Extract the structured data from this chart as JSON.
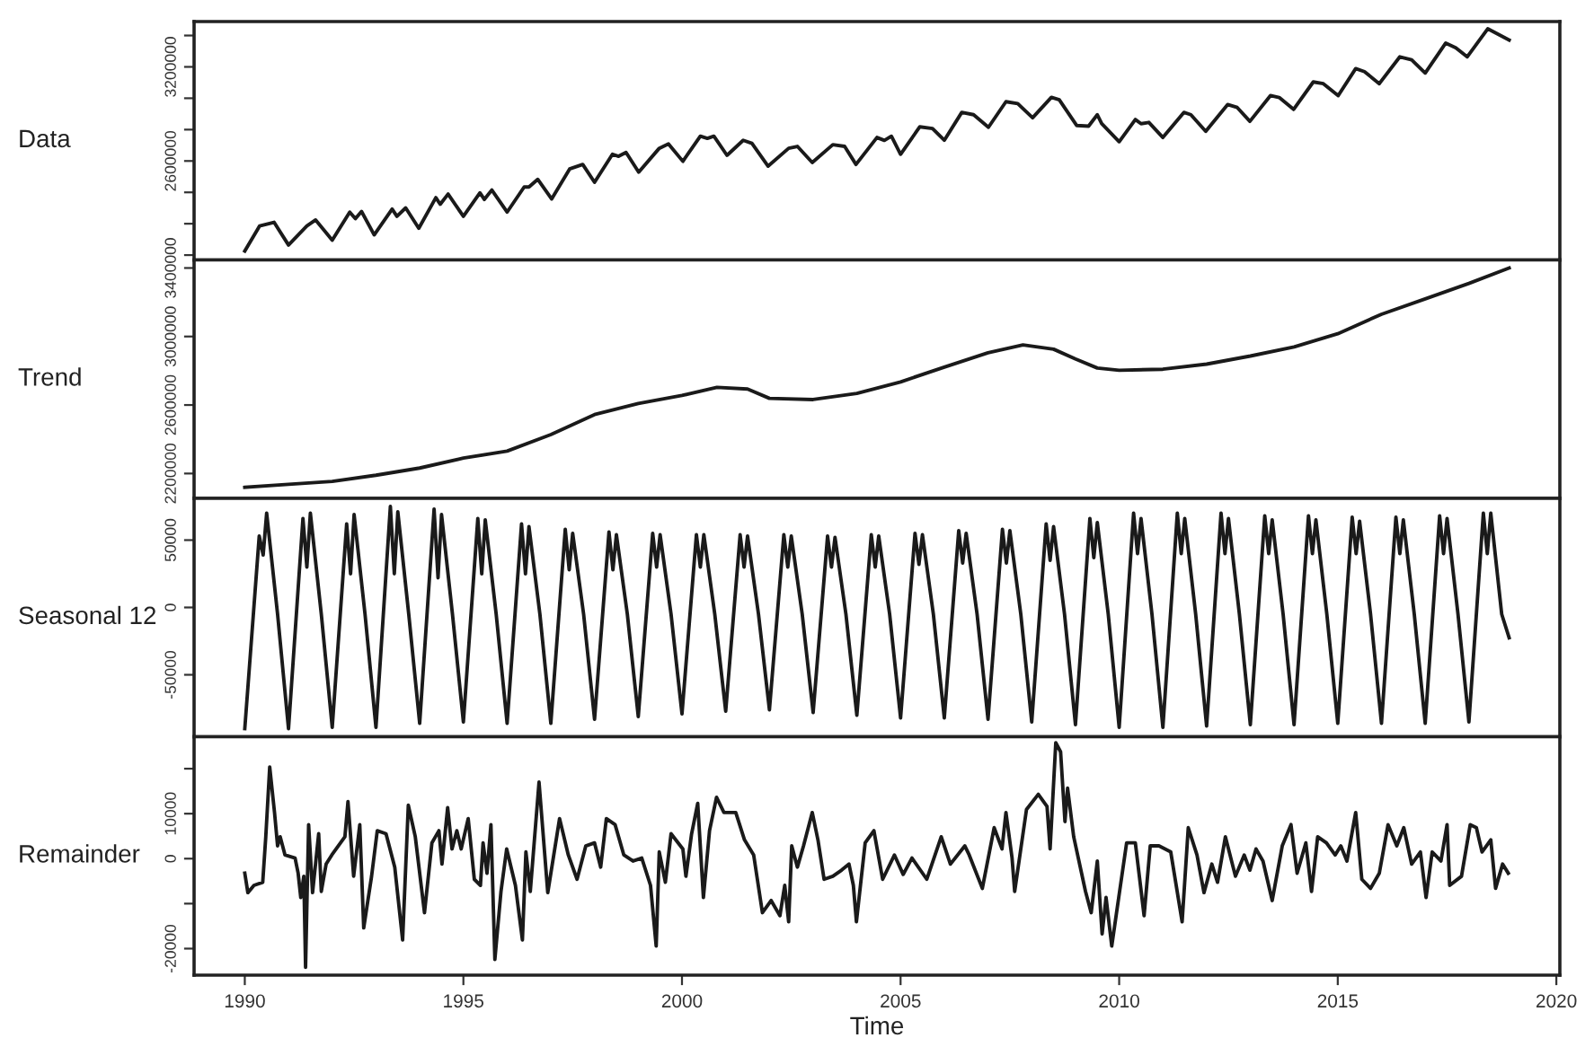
{
  "chart_data": [
    {
      "type": "line",
      "ylabel": "Data",
      "tick_labels": "y",
      "grid": false,
      "legend": false,
      "xlim": [
        1988.84,
        2020.08
      ],
      "ylim": [
        1969000,
        3489000
      ],
      "yticks": [
        {
          "value": 3400000,
          "label": null
        },
        3200000,
        {
          "value": 3000000,
          "label": null
        },
        {
          "value": 2800000,
          "label": null
        },
        2600000,
        {
          "value": 2400000,
          "label": null
        },
        {
          "value": 2200000,
          "label": null
        },
        {
          "value": 2000000,
          "label": null
        }
      ],
      "series": [
        {
          "color": "#1a1a1a",
          "x": [
            1990.0,
            1990.34,
            1990.67,
            1991.0,
            1991.42,
            1991.62,
            1992.0,
            1992.4,
            1992.53,
            1992.67,
            1992.96,
            1993.37,
            1993.48,
            1993.68,
            1993.98,
            1994.37,
            1994.47,
            1994.65,
            1995.0,
            1995.38,
            1995.48,
            1995.65,
            1996.0,
            1996.39,
            1996.5,
            1996.7,
            1997.02,
            1997.43,
            1997.73,
            1998.0,
            1998.41,
            1998.55,
            1998.72,
            1999.01,
            1999.48,
            1999.69,
            2000.02,
            2000.42,
            2000.58,
            2000.73,
            2001.03,
            2001.4,
            2001.6,
            2001.97,
            2002.44,
            2002.64,
            2002.98,
            2003.45,
            2003.72,
            2003.98,
            2004.46,
            2004.63,
            2004.79,
            2005.0,
            2005.44,
            2005.73,
            2006.0,
            2006.4,
            2006.67,
            2007.01,
            2007.41,
            2007.68,
            2008.02,
            2008.45,
            2008.63,
            2009.03,
            2009.3,
            2009.5,
            2009.6,
            2010.0,
            2010.37,
            2010.5,
            2010.68,
            2011.0,
            2011.48,
            2011.64,
            2011.98,
            2012.48,
            2012.7,
            2012.99,
            2013.46,
            2013.66,
            2013.99,
            2014.44,
            2014.67,
            2015.01,
            2015.41,
            2015.61,
            2015.95,
            2016.42,
            2016.69,
            2017.0,
            2017.47,
            2017.7,
            2017.96,
            2018.43,
            2018.92
          ],
          "values": [
            2026000,
            2186000,
            2209000,
            2064000,
            2186000,
            2224000,
            2095000,
            2274000,
            2232000,
            2278000,
            2129000,
            2293000,
            2247000,
            2301000,
            2171000,
            2366000,
            2324000,
            2389000,
            2247000,
            2397000,
            2355000,
            2415000,
            2274000,
            2434000,
            2434000,
            2483000,
            2358000,
            2549000,
            2578000,
            2464000,
            2643000,
            2630000,
            2655000,
            2529000,
            2681000,
            2709000,
            2598000,
            2758000,
            2744000,
            2758000,
            2636000,
            2732000,
            2713000,
            2567000,
            2681000,
            2693000,
            2590000,
            2704000,
            2693000,
            2578000,
            2750000,
            2731000,
            2758000,
            2643000,
            2818000,
            2807000,
            2732000,
            2910000,
            2895000,
            2815000,
            2978000,
            2966000,
            2876000,
            3006000,
            2990000,
            2826000,
            2822000,
            2895000,
            2838000,
            2723000,
            2864000,
            2838000,
            2846000,
            2750000,
            2910000,
            2895000,
            2789000,
            2960000,
            2941000,
            2853000,
            3017000,
            3005000,
            2929000,
            3104000,
            3093000,
            3017000,
            3189000,
            3170000,
            3093000,
            3264000,
            3245000,
            3161000,
            3352000,
            3322000,
            3264000,
            3443000,
            3371000
          ]
        }
      ]
    },
    {
      "type": "line",
      "ylabel": "Trend",
      "tick_labels": "y",
      "grid": false,
      "legend": false,
      "xlim": [
        1988.84,
        2020.08
      ],
      "ylim": [
        2055000,
        3447000
      ],
      "yticks": [
        2200000,
        2600000,
        3000000,
        3400000
      ],
      "series": [
        {
          "color": "#1a1a1a",
          "x": [
            1990,
            1991,
            1992,
            1993,
            1994,
            1995,
            1996,
            1997,
            1998,
            1999,
            2000,
            2000.8,
            2001.5,
            2002,
            2003,
            2004,
            2005,
            2006,
            2007,
            2007.8,
            2008.5,
            2009,
            2009.5,
            2010,
            2011,
            2012,
            2013,
            2014,
            2015,
            2016,
            2017,
            2018,
            2018.92
          ],
          "values": [
            2119000,
            2137000,
            2154000,
            2190000,
            2232000,
            2290000,
            2331000,
            2427000,
            2544000,
            2609000,
            2656000,
            2703000,
            2693000,
            2639000,
            2632000,
            2668000,
            2735000,
            2821000,
            2905000,
            2951000,
            2926000,
            2869000,
            2816000,
            2803000,
            2809000,
            2839000,
            2886000,
            2939000,
            3016000,
            3130000,
            3220000,
            3310000,
            3400000
          ]
        }
      ]
    },
    {
      "type": "line",
      "ylabel": "Seasonal 12",
      "tick_labels": "y",
      "grid": false,
      "legend": false,
      "xlim": [
        1988.84,
        2020.08
      ],
      "ylim": [
        -96000,
        81000
      ],
      "yticks": [
        -50000,
        0,
        50000
      ],
      "series": [
        {
          "color": "#1a1a1a",
          "x": [
            1990,
            1990.33,
            1990.42,
            1990.5,
            1990.75,
            1991,
            1991.33,
            1991.42,
            1991.5,
            1991.75,
            1992,
            1992.33,
            1992.42,
            1992.5,
            1992.75,
            1993,
            1993.33,
            1993.42,
            1993.5,
            1993.75,
            1994,
            1994.33,
            1994.42,
            1994.5,
            1994.75,
            1995,
            1995.33,
            1995.42,
            1995.5,
            1995.75,
            1996,
            1996.33,
            1996.42,
            1996.5,
            1996.75,
            1997,
            1997.33,
            1997.42,
            1997.5,
            1997.75,
            1998,
            1998.33,
            1998.42,
            1998.5,
            1998.75,
            1999,
            1999.33,
            1999.42,
            1999.5,
            1999.75,
            2000,
            2000.33,
            2000.42,
            2000.5,
            2000.75,
            2001,
            2001.33,
            2001.42,
            2001.5,
            2001.75,
            2002,
            2002.33,
            2002.42,
            2002.5,
            2002.75,
            2003,
            2003.33,
            2003.42,
            2003.5,
            2003.75,
            2004,
            2004.33,
            2004.42,
            2004.5,
            2004.75,
            2005,
            2005.33,
            2005.42,
            2005.5,
            2005.75,
            2006,
            2006.33,
            2006.42,
            2006.5,
            2006.75,
            2007,
            2007.33,
            2007.42,
            2007.5,
            2007.75,
            2008,
            2008.33,
            2008.42,
            2008.5,
            2008.75,
            2009,
            2009.33,
            2009.42,
            2009.5,
            2009.75,
            2010,
            2010.33,
            2010.42,
            2010.5,
            2010.75,
            2011,
            2011.33,
            2011.42,
            2011.5,
            2011.75,
            2012,
            2012.33,
            2012.42,
            2012.5,
            2012.75,
            2013,
            2013.33,
            2013.42,
            2013.5,
            2013.75,
            2014,
            2014.33,
            2014.42,
            2014.5,
            2014.75,
            2015,
            2015.33,
            2015.42,
            2015.5,
            2015.75,
            2016,
            2016.33,
            2016.42,
            2016.5,
            2016.75,
            2017,
            2017.33,
            2017.42,
            2017.5,
            2017.75,
            2018,
            2018.33,
            2018.42,
            2018.5,
            2018.75,
            2018.92
          ],
          "values": [
            -90000,
            53000,
            39000,
            70000,
            -5000,
            -90000,
            66000,
            30000,
            70000,
            -5000,
            -89000,
            62000,
            25000,
            69000,
            -5000,
            -89000,
            75000,
            25000,
            71000,
            -5000,
            -86000,
            73000,
            22000,
            69000,
            -5000,
            -85000,
            66000,
            25000,
            65000,
            -5000,
            -86000,
            62000,
            25000,
            60000,
            -5000,
            -86000,
            58000,
            28000,
            55000,
            -5000,
            -83000,
            56000,
            28000,
            54000,
            -5000,
            -81000,
            55000,
            30000,
            54000,
            -5000,
            -79000,
            54000,
            30000,
            54000,
            -5000,
            -77000,
            54000,
            30000,
            53000,
            -5000,
            -76000,
            54000,
            30000,
            53000,
            -5000,
            -78000,
            53000,
            30000,
            52000,
            -5000,
            -80000,
            54000,
            30000,
            53000,
            -5000,
            -82000,
            55000,
            32000,
            54000,
            -5000,
            -82000,
            57000,
            33000,
            55000,
            -5000,
            -83000,
            58000,
            33000,
            57000,
            -5000,
            -85000,
            62000,
            35000,
            60000,
            -5000,
            -87000,
            66000,
            37000,
            63000,
            -5000,
            -89000,
            70000,
            40000,
            66000,
            -5000,
            -89000,
            70000,
            40000,
            66000,
            -5000,
            -88000,
            70000,
            40000,
            66000,
            -5000,
            -87000,
            68000,
            40000,
            65000,
            -5000,
            -87000,
            68000,
            40000,
            65000,
            -5000,
            -86000,
            67000,
            40000,
            64000,
            -5000,
            -86000,
            67000,
            40000,
            65000,
            -5000,
            -86000,
            68000,
            40000,
            66000,
            -5000,
            -85000,
            70000,
            40000,
            70000,
            -5000,
            -22500
          ]
        }
      ]
    },
    {
      "type": "line",
      "ylabel": "Remainder",
      "xlabel": "Time",
      "grid": false,
      "legend": false,
      "xlim": [
        1988.84,
        2020.08
      ],
      "ylim": [
        -25900,
        27100
      ],
      "xticks": [
        1990,
        1995,
        2000,
        2005,
        2010,
        2015,
        2020
      ],
      "yticks": [
        {
          "value": 20000,
          "label": null
        },
        10000,
        0,
        {
          "value": -10000,
          "label": null
        },
        -20000
      ],
      "series": [
        {
          "color": "#1a1a1a",
          "x": [
            1990.0,
            1990.07,
            1990.21,
            1990.41,
            1990.48,
            1990.57,
            1990.68,
            1990.75,
            1990.81,
            1990.92,
            1991.15,
            1991.22,
            1991.28,
            1991.35,
            1991.39,
            1991.46,
            1991.55,
            1991.69,
            1991.75,
            1991.86,
            1991.99,
            1992.29,
            1992.36,
            1992.49,
            1992.63,
            1992.72,
            1992.9,
            1993.03,
            1993.23,
            1993.43,
            1993.61,
            1993.74,
            1993.9,
            1994.11,
            1994.28,
            1994.44,
            1994.51,
            1994.64,
            1994.74,
            1994.85,
            1994.95,
            1995.11,
            1995.25,
            1995.39,
            1995.45,
            1995.54,
            1995.63,
            1995.72,
            1995.86,
            1995.99,
            1996.19,
            1996.35,
            1996.43,
            1996.53,
            1996.73,
            1996.93,
            1997.2,
            1997.4,
            1997.6,
            1997.8,
            1998.0,
            1998.14,
            1998.27,
            1998.47,
            1998.67,
            1998.88,
            1999.08,
            1999.28,
            1999.41,
            1999.48,
            1999.62,
            1999.75,
            2000.02,
            2000.09,
            2000.22,
            2000.36,
            2000.49,
            2000.63,
            2000.79,
            2000.96,
            2001.23,
            2001.43,
            2001.64,
            2001.84,
            2002.04,
            2002.24,
            2002.35,
            2002.44,
            2002.51,
            2002.64,
            2002.78,
            2002.98,
            2003.11,
            2003.25,
            2003.45,
            2003.65,
            2003.82,
            2003.92,
            2003.99,
            2004.19,
            2004.39,
            2004.59,
            2004.86,
            2005.06,
            2005.26,
            2005.6,
            2005.93,
            2006.14,
            2006.47,
            2006.57,
            2006.87,
            2007.14,
            2007.32,
            2007.41,
            2007.55,
            2007.61,
            2007.88,
            2008.15,
            2008.35,
            2008.42,
            2008.55,
            2008.66,
            2008.76,
            2008.82,
            2008.96,
            2009.23,
            2009.36,
            2009.5,
            2009.61,
            2009.7,
            2009.83,
            2009.97,
            2010.17,
            2010.37,
            2010.57,
            2010.71,
            2010.91,
            2011.18,
            2011.44,
            2011.58,
            2011.78,
            2011.94,
            2012.12,
            2012.25,
            2012.43,
            2012.66,
            2012.86,
            2012.99,
            2013.13,
            2013.29,
            2013.5,
            2013.73,
            2013.93,
            2014.07,
            2014.27,
            2014.4,
            2014.54,
            2014.74,
            2014.94,
            2015.07,
            2015.21,
            2015.41,
            2015.55,
            2015.75,
            2015.95,
            2016.15,
            2016.35,
            2016.51,
            2016.69,
            2016.89,
            2017.02,
            2017.16,
            2017.36,
            2017.5,
            2017.56,
            2017.83,
            2018.03,
            2018.17,
            2018.3,
            2018.5,
            2018.61,
            2018.77,
            2018.9
          ],
          "values": [
            -3240,
            -7560,
            -5940,
            -5265,
            4860,
            20385,
            10260,
            2835,
            4860,
            810,
            135,
            -3240,
            -8640,
            -3915,
            -24165,
            7560,
            -7560,
            5535,
            -7290,
            -1215,
            810,
            4860,
            12690,
            -3915,
            7560,
            -15390,
            -3915,
            6210,
            5535,
            -1890,
            -18090,
            11880,
            4860,
            -12015,
            3510,
            6210,
            -1215,
            11340,
            2160,
            6210,
            2160,
            8910,
            -4590,
            -5940,
            3510,
            -3240,
            7560,
            -22410,
            -7290,
            2160,
            -5940,
            -18090,
            1485,
            -7290,
            17010,
            -7560,
            8910,
            810,
            -4590,
            2835,
            3510,
            -1890,
            8910,
            7560,
            810,
            -540,
            135,
            -5940,
            -19440,
            1485,
            -5265,
            5535,
            2160,
            -3915,
            5535,
            12285,
            -8640,
            6210,
            13635,
            10260,
            10260,
            4185,
            810,
            -12015,
            -9315,
            -12690,
            -5940,
            -14040,
            2835,
            -1890,
            2835,
            10260,
            4185,
            -4590,
            -3915,
            -2565,
            -1215,
            -5940,
            -14040,
            3510,
            6210,
            -4590,
            810,
            -3510,
            135,
            -4590,
            4860,
            -1215,
            2835,
            810,
            -6615,
            6885,
            2160,
            10260,
            135,
            -7290,
            10935,
            14310,
            11610,
            2160,
            25785,
            23760,
            8235,
            15660,
            4860,
            -7290,
            -12015,
            -540,
            -16740,
            -8640,
            -19440,
            -9990,
            3510,
            3510,
            -12690,
            2835,
            2835,
            1485,
            -14040,
            6885,
            810,
            -7560,
            -1215,
            -5265,
            4860,
            -3915,
            810,
            -2565,
            2160,
            -540,
            -9315,
            2835,
            7560,
            -3240,
            3510,
            -7290,
            4860,
            3510,
            810,
            2835,
            -540,
            10260,
            -4590,
            -6615,
            -3240,
            7560,
            2835,
            6885,
            -1215,
            1485,
            -8640,
            1485,
            -540,
            7560,
            -5940,
            -3915,
            7560,
            6885,
            1485,
            4185,
            -6615,
            -1215,
            -3240
          ]
        }
      ]
    }
  ]
}
